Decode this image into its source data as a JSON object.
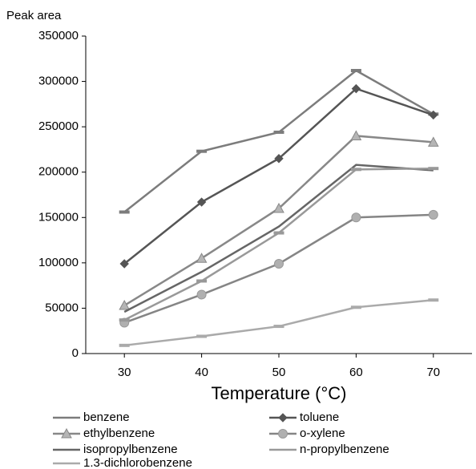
{
  "chart_data": {
    "type": "line",
    "title": "Peak area",
    "x_label": "Temperature (°C)",
    "x": [
      30,
      40,
      50,
      60,
      70
    ],
    "xlim": [
      25,
      75
    ],
    "xticks": [
      30,
      40,
      50,
      60,
      70
    ],
    "ylim": [
      0,
      350000
    ],
    "yticks": [
      0,
      50000,
      100000,
      150000,
      200000,
      250000,
      300000,
      350000
    ],
    "grid": false,
    "series": [
      {
        "name": "benzene",
        "color": "#7c7c7c",
        "marker": "dash",
        "values": [
          156000,
          223000,
          244000,
          312000,
          264000
        ]
      },
      {
        "name": "toluene",
        "color": "#555555",
        "marker": "diamond",
        "values": [
          99000,
          167000,
          215000,
          292000,
          263000
        ]
      },
      {
        "name": "ethylbenzene",
        "color": "#888888",
        "marker": "triangle",
        "values": [
          53000,
          105000,
          160000,
          240000,
          233000
        ]
      },
      {
        "name": "o-xylene",
        "color": "#858585",
        "marker": "circle",
        "values": [
          34000,
          65000,
          99000,
          150000,
          153000
        ]
      },
      {
        "name": "isopropylbenzene",
        "color": "#666666",
        "marker": "none",
        "values": [
          46000,
          90000,
          140000,
          208000,
          202000
        ]
      },
      {
        "name": "n-propylbenzene",
        "color": "#999999",
        "marker": "dash",
        "values": [
          37000,
          80000,
          133000,
          203000,
          204000
        ]
      },
      {
        "name": "1.3-dichlorobenzene",
        "color": "#aaaaaa",
        "marker": "dash",
        "values": [
          9000,
          19000,
          30000,
          51000,
          59000
        ]
      }
    ]
  }
}
